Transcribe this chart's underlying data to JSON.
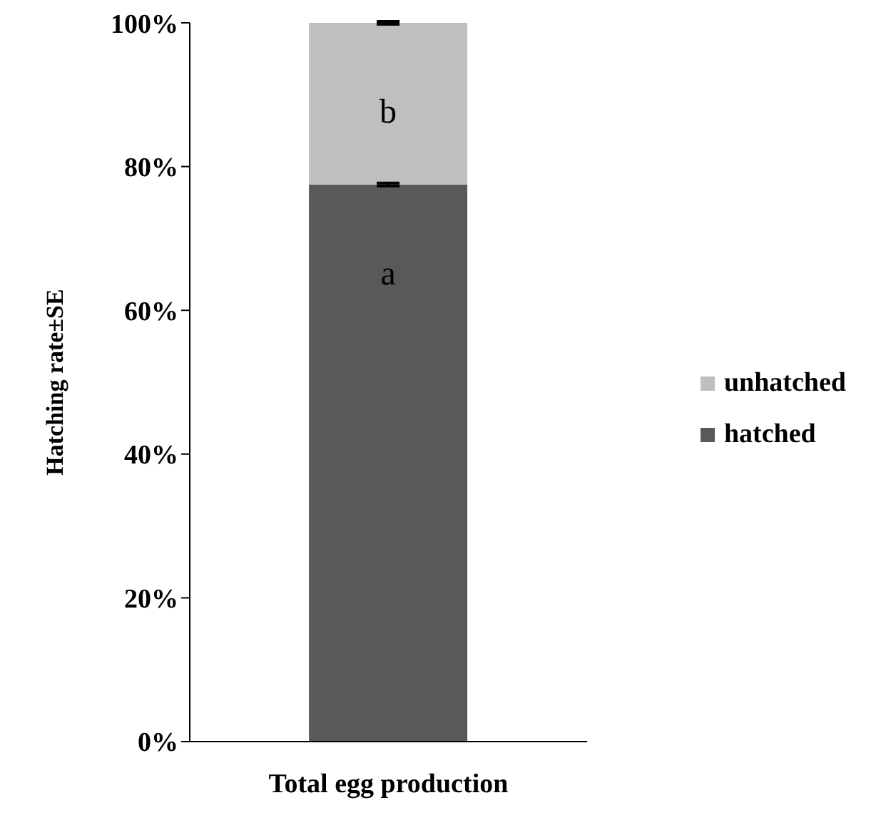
{
  "chart_data": {
    "type": "bar",
    "stacked": true,
    "categories": [
      "Total egg production"
    ],
    "ylabel": "Hatching rate±SE",
    "series": [
      {
        "name": "hatched",
        "color": "#595959",
        "values": [
          77.5
        ],
        "errors": [
          0.2
        ]
      },
      {
        "name": "unhatched",
        "color": "#bfbfbf",
        "values": [
          22.5
        ],
        "errors": [
          0.2
        ]
      }
    ],
    "ylim": [
      0,
      100
    ],
    "yticks": [
      {
        "value": 0,
        "label": "0%"
      },
      {
        "value": 20,
        "label": "20%"
      },
      {
        "value": 40,
        "label": "40%"
      },
      {
        "value": 60,
        "label": "60%"
      },
      {
        "value": 80,
        "label": "80%"
      },
      {
        "value": 100,
        "label": "100%"
      }
    ],
    "legend": "right",
    "annotations": [
      "a",
      "b"
    ]
  }
}
